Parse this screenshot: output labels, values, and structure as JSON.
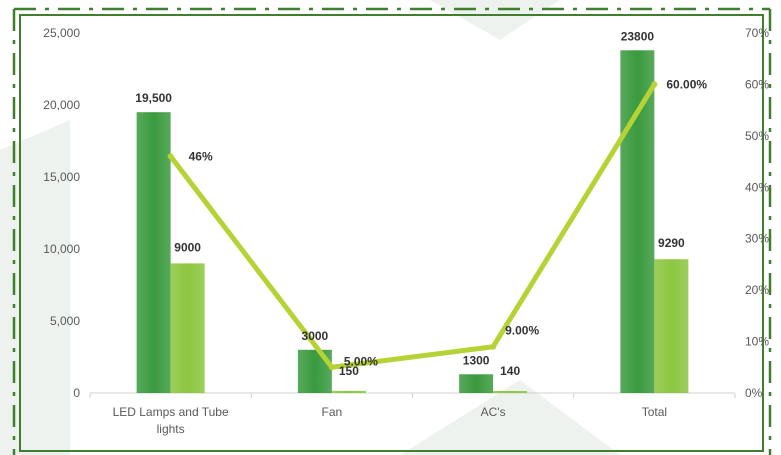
{
  "chart_data": {
    "type": "bar",
    "categories": [
      "LED Lamps and Tube lights",
      "Fan",
      "AC's",
      "Total"
    ],
    "series": [
      {
        "kind": "bar",
        "axis": "left",
        "color": "#3a9a3e",
        "values": [
          19500,
          3000,
          1300,
          23800
        ],
        "labels": [
          "19,500",
          "3000",
          "1300",
          "23800"
        ]
      },
      {
        "kind": "bar",
        "axis": "left",
        "color": "#8cc63f",
        "values": [
          9000,
          150,
          140,
          9290
        ],
        "labels": [
          "9000",
          "150",
          "140",
          "9290"
        ]
      },
      {
        "kind": "line",
        "axis": "right",
        "color": "#b5d334",
        "values": [
          0.46,
          0.05,
          0.09,
          0.6
        ],
        "labels": [
          "46%",
          "5.00%",
          "9.00%",
          "60.00%"
        ]
      }
    ],
    "y_left": {
      "min": 0,
      "max": 25000,
      "ticks": [
        "0",
        "5,000",
        "10,000",
        "15,000",
        "20,000",
        "25,000"
      ]
    },
    "y_right": {
      "min": 0,
      "max": 0.7,
      "ticks": [
        "0%",
        "10%",
        "20%",
        "30%",
        "40%",
        "50%",
        "60%",
        "70%"
      ]
    },
    "title": "",
    "xlabel": "",
    "ylabel": "",
    "legend": "none",
    "grid": false
  },
  "frame_color": "#3f7f2e",
  "background_shape_color": "#eef2ee"
}
